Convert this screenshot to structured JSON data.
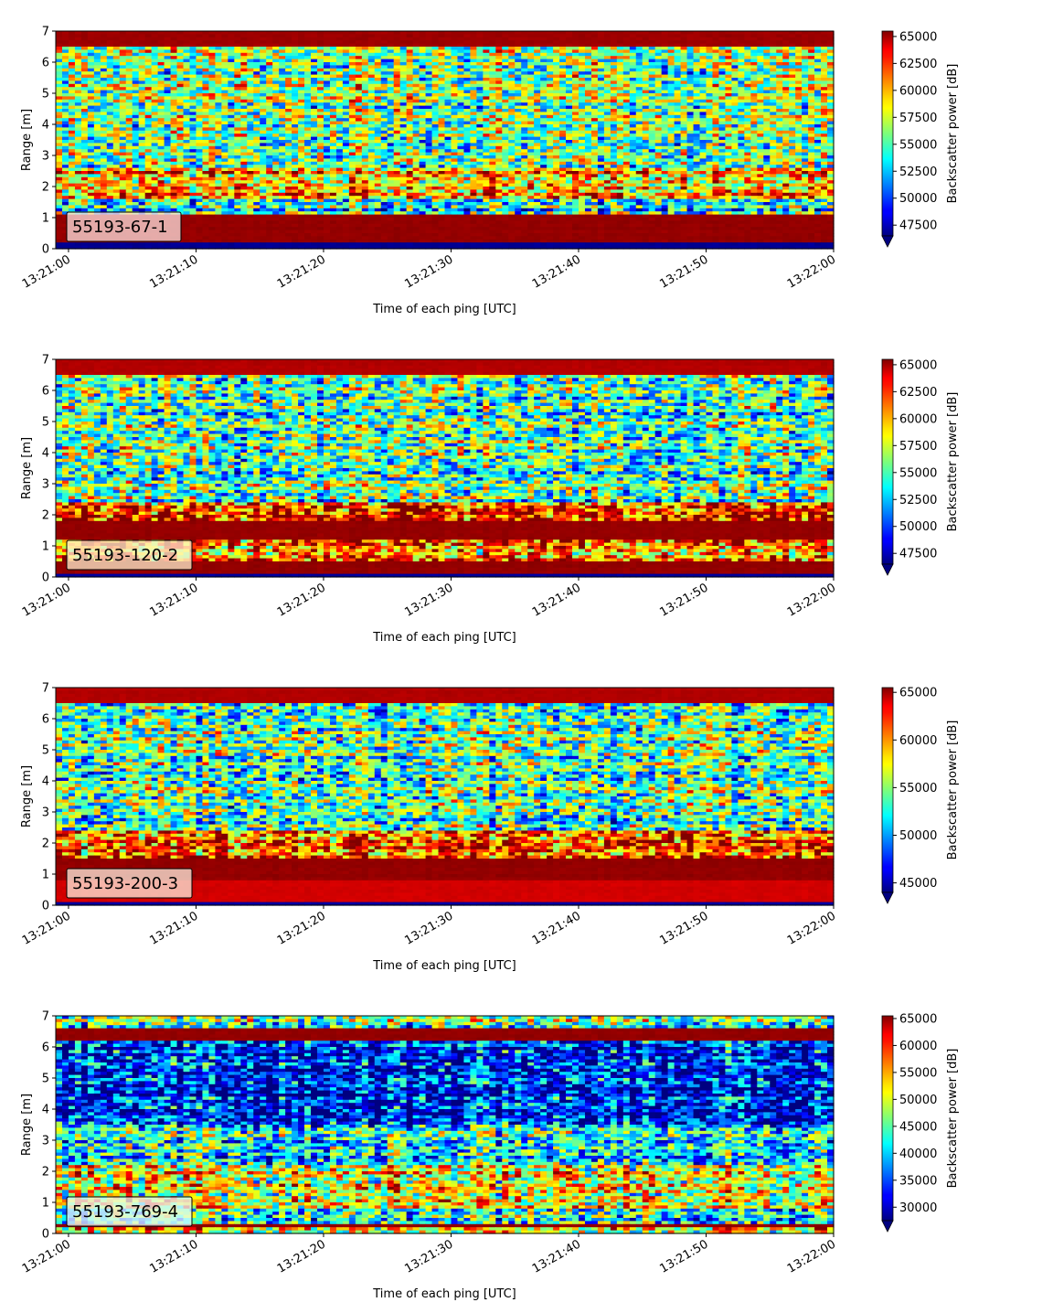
{
  "colormap": "jet",
  "chart_data": [
    {
      "type": "heatmap",
      "label": "55193-67-1",
      "xlabel": "Time of each ping [UTC]",
      "ylabel": "Range [m]",
      "xticks": [
        "13:21:00",
        "13:21:10",
        "13:21:20",
        "13:21:30",
        "13:21:40",
        "13:21:50",
        "13:22:00"
      ],
      "xlim": [
        "13:20:59",
        "13:22:00"
      ],
      "ylim": [
        0,
        7
      ],
      "yticks": [
        "0",
        "1",
        "2",
        "3",
        "4",
        "5",
        "6",
        "7"
      ],
      "colorbar": {
        "label": "Backscatter power [dB]",
        "min": 46500,
        "max": 65500,
        "extend": "min",
        "ticks": [
          "47500",
          "50000",
          "52500",
          "55000",
          "57500",
          "60000",
          "62500",
          "65000"
        ],
        "tick_values": [
          47500,
          50000,
          52500,
          55000,
          57500,
          60000,
          62500,
          65000
        ]
      },
      "bands": [
        [
          0,
          0.25,
          0.02
        ],
        [
          0.25,
          1.1,
          0.98
        ],
        [
          1.1,
          1.6,
          0.4
        ],
        [
          1.6,
          2.6,
          0.72
        ],
        [
          2.6,
          6.5,
          0.5
        ],
        [
          6.5,
          7.0,
          0.97
        ]
      ]
    },
    {
      "type": "heatmap",
      "label": "55193-120-2",
      "xlabel": "Time of each ping [UTC]",
      "ylabel": "Range [m]",
      "xticks": [
        "13:21:00",
        "13:21:10",
        "13:21:20",
        "13:21:30",
        "13:21:40",
        "13:21:50",
        "13:22:00"
      ],
      "xlim": [
        "13:20:59",
        "13:22:00"
      ],
      "ylim": [
        0,
        7
      ],
      "yticks": [
        "0",
        "1",
        "2",
        "3",
        "4",
        "5",
        "6",
        "7"
      ],
      "colorbar": {
        "label": "Backscatter power [dB]",
        "min": 46500,
        "max": 65500,
        "extend": "min",
        "ticks": [
          "47500",
          "50000",
          "52500",
          "55000",
          "57500",
          "60000",
          "62500",
          "65000"
        ],
        "tick_values": [
          47500,
          50000,
          52500,
          55000,
          57500,
          60000,
          62500,
          65000
        ]
      },
      "bands": [
        [
          0,
          0.1,
          0.03
        ],
        [
          0.1,
          0.5,
          0.98
        ],
        [
          0.5,
          1.2,
          0.72
        ],
        [
          1.2,
          1.8,
          0.98
        ],
        [
          1.8,
          2.4,
          0.8
        ],
        [
          2.4,
          6.5,
          0.45
        ],
        [
          6.5,
          7.0,
          0.95
        ]
      ]
    },
    {
      "type": "heatmap",
      "label": "55193-200-3",
      "xlabel": "Time of each ping [UTC]",
      "ylabel": "Range [m]",
      "xticks": [
        "13:21:00",
        "13:21:10",
        "13:21:20",
        "13:21:30",
        "13:21:40",
        "13:21:50",
        "13:22:00"
      ],
      "xlim": [
        "13:20:59",
        "13:22:00"
      ],
      "ylim": [
        0,
        7
      ],
      "yticks": [
        "0",
        "1",
        "2",
        "3",
        "4",
        "5",
        "6",
        "7"
      ],
      "colorbar": {
        "label": "Backscatter power [dB]",
        "min": 44000,
        "max": 65500,
        "extend": "min",
        "ticks": [
          "45000",
          "50000",
          "55000",
          "60000",
          "65000"
        ],
        "tick_values": [
          45000,
          50000,
          55000,
          60000,
          65000
        ]
      },
      "bands": [
        [
          0,
          0.15,
          0.03
        ],
        [
          0.15,
          0.8,
          0.92
        ],
        [
          0.8,
          1.5,
          0.98
        ],
        [
          1.5,
          2.4,
          0.82
        ],
        [
          2.4,
          6.5,
          0.45
        ],
        [
          6.5,
          7.0,
          0.95
        ]
      ]
    },
    {
      "type": "heatmap",
      "label": "55193-769-4",
      "xlabel": "Time of each ping [UTC]",
      "ylabel": "Range [m]",
      "xticks": [
        "13:21:00",
        "13:21:10",
        "13:21:20",
        "13:21:30",
        "13:21:40",
        "13:21:50",
        "13:22:00"
      ],
      "xlim": [
        "13:20:59",
        "13:22:00"
      ],
      "ylim": [
        0,
        7
      ],
      "yticks": [
        "0",
        "1",
        "2",
        "3",
        "4",
        "5",
        "6",
        "7"
      ],
      "colorbar": {
        "label": "Backscatter power [dB]",
        "min": 27500,
        "max": 65500,
        "extend": "min",
        "ticks": [
          "30000",
          "35000",
          "40000",
          "45000",
          "50000",
          "55000",
          "60000",
          "65000"
        ],
        "tick_values": [
          30000,
          35000,
          40000,
          45000,
          50000,
          55000,
          60000,
          65000
        ]
      },
      "bands": [
        [
          0,
          0.2,
          0.55
        ],
        [
          0.2,
          0.35,
          0.98
        ],
        [
          0.35,
          0.8,
          0.4
        ],
        [
          0.8,
          2.2,
          0.62
        ],
        [
          2.2,
          3.5,
          0.35
        ],
        [
          3.5,
          6.2,
          0.12
        ],
        [
          6.2,
          6.6,
          0.98
        ],
        [
          6.6,
          7.0,
          0.45
        ]
      ]
    }
  ]
}
